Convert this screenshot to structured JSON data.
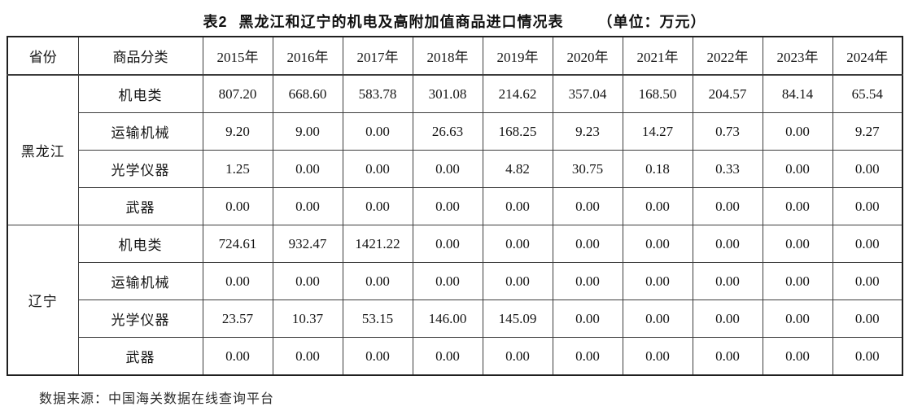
{
  "title": {
    "label": "表2",
    "text": "黑龙江和辽宁的机电及高附加值商品进口情况表",
    "unit": "（单位：万元）"
  },
  "table": {
    "headers": {
      "province": "省份",
      "category": "商品分类",
      "years": [
        "2015年",
        "2016年",
        "2017年",
        "2018年",
        "2019年",
        "2020年",
        "2021年",
        "2022年",
        "2023年",
        "2024年"
      ]
    },
    "groups": [
      {
        "province": "黑龙江",
        "rows": [
          {
            "category": "机电类",
            "values": [
              "807.20",
              "668.60",
              "583.78",
              "301.08",
              "214.62",
              "357.04",
              "168.50",
              "204.57",
              "84.14",
              "65.54"
            ]
          },
          {
            "category": "运输机械",
            "values": [
              "9.20",
              "9.00",
              "0.00",
              "26.63",
              "168.25",
              "9.23",
              "14.27",
              "0.73",
              "0.00",
              "9.27"
            ]
          },
          {
            "category": "光学仪器",
            "values": [
              "1.25",
              "0.00",
              "0.00",
              "0.00",
              "4.82",
              "30.75",
              "0.18",
              "0.33",
              "0.00",
              "0.00"
            ]
          },
          {
            "category": "武器",
            "values": [
              "0.00",
              "0.00",
              "0.00",
              "0.00",
              "0.00",
              "0.00",
              "0.00",
              "0.00",
              "0.00",
              "0.00"
            ]
          }
        ]
      },
      {
        "province": "辽宁",
        "rows": [
          {
            "category": "机电类",
            "values": [
              "724.61",
              "932.47",
              "1421.22",
              "0.00",
              "0.00",
              "0.00",
              "0.00",
              "0.00",
              "0.00",
              "0.00"
            ]
          },
          {
            "category": "运输机械",
            "values": [
              "0.00",
              "0.00",
              "0.00",
              "0.00",
              "0.00",
              "0.00",
              "0.00",
              "0.00",
              "0.00",
              "0.00"
            ]
          },
          {
            "category": "光学仪器",
            "values": [
              "23.57",
              "10.37",
              "53.15",
              "146.00",
              "145.09",
              "0.00",
              "0.00",
              "0.00",
              "0.00",
              "0.00"
            ]
          },
          {
            "category": "武器",
            "values": [
              "0.00",
              "0.00",
              "0.00",
              "0.00",
              "0.00",
              "0.00",
              "0.00",
              "0.00",
              "0.00",
              "0.00"
            ]
          }
        ]
      }
    ]
  },
  "footer": {
    "source": "数据来源：中国海关数据在线查询平台"
  }
}
